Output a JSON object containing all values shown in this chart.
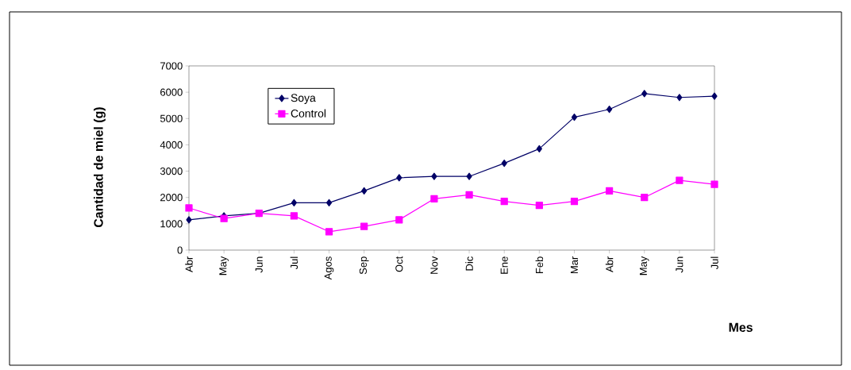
{
  "chart_data": {
    "type": "line",
    "xlabel": "Mes",
    "ylabel": "Cantidad de miel (g)",
    "categories": [
      "Abr",
      "May",
      "Jun",
      "Jul",
      "Agos",
      "Sep",
      "Oct",
      "Nov",
      "Dic",
      "Ene",
      "Feb",
      "Mar",
      "Abr",
      "May",
      "Jun",
      "Jul"
    ],
    "series": [
      {
        "name": "Soya",
        "color": "#000066",
        "marker": "diamond",
        "values": [
          1150,
          1300,
          1400,
          1800,
          1800,
          2250,
          2750,
          2800,
          2800,
          3300,
          3850,
          5050,
          5350,
          5950,
          5800,
          5850
        ]
      },
      {
        "name": "Control",
        "color": "#ff00ff",
        "marker": "square",
        "values": [
          1600,
          1200,
          1400,
          1300,
          700,
          900,
          1150,
          1950,
          2100,
          1850,
          1700,
          1850,
          2250,
          2000,
          2650,
          2500
        ]
      }
    ],
    "ylim": [
      0,
      7000
    ],
    "yticks": [
      0,
      1000,
      2000,
      3000,
      4000,
      5000,
      6000,
      7000
    ],
    "grid": false,
    "legend": "top left"
  }
}
